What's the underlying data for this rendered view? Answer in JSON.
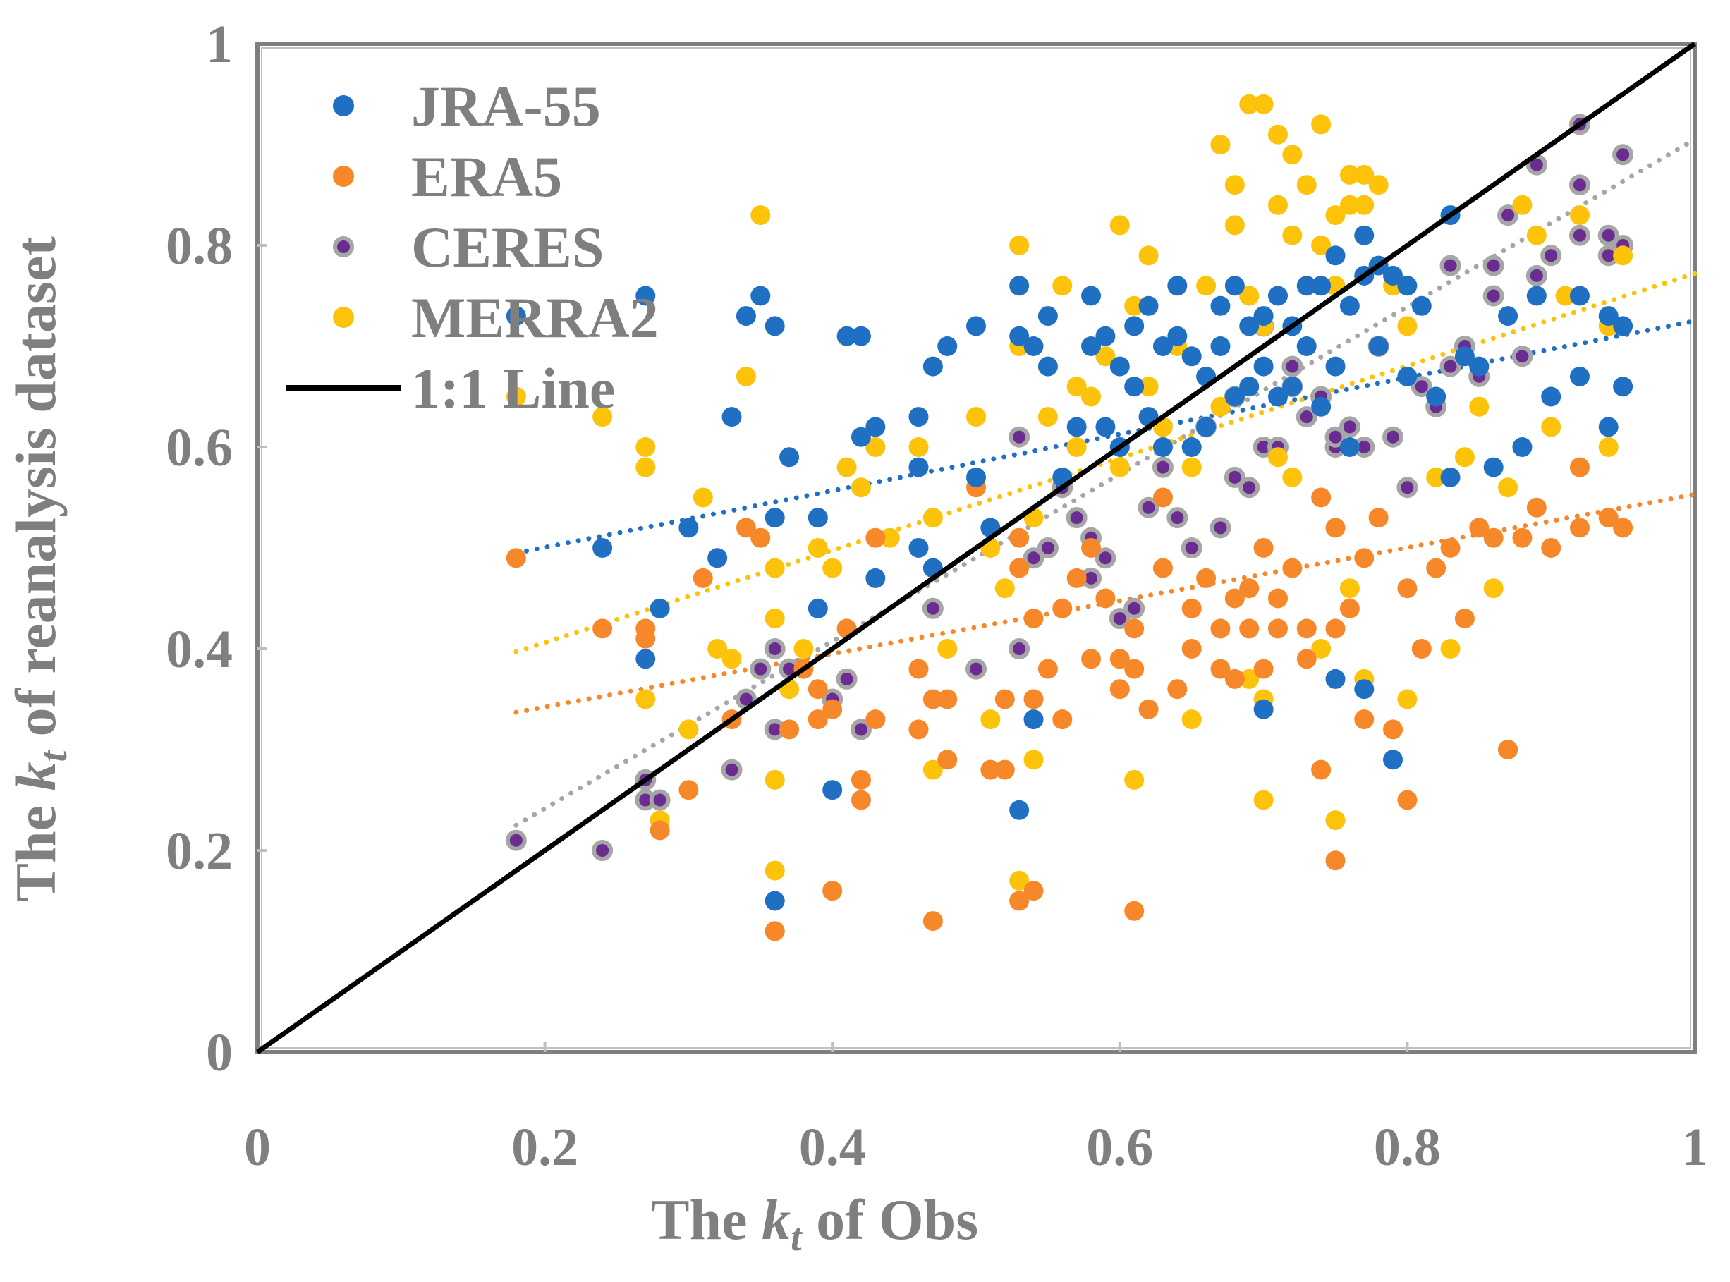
{
  "chart_data": {
    "type": "scatter",
    "title": "",
    "xlabel": {
      "prefix": "The ",
      "k": "k",
      "sub": "t",
      "suffix": " of Obs"
    },
    "ylabel": {
      "prefix": "The ",
      "k": "k",
      "sub": "t",
      "suffix": " of reanalysis dataset"
    },
    "xlim": [
      0,
      1
    ],
    "ylim": [
      0,
      1
    ],
    "x_ticks": [
      0,
      0.2,
      0.4,
      0.6,
      0.8,
      1
    ],
    "y_ticks": [
      0,
      0.2,
      0.4,
      0.6,
      0.8,
      1
    ],
    "x_tick_labels": [
      "0",
      "0.2",
      "0.4",
      "0.6",
      "0.8",
      "1"
    ],
    "y_tick_labels": [
      "0",
      "0.2",
      "0.4",
      "0.6",
      "0.8",
      "1"
    ],
    "legend_position": "top-left",
    "legend": [
      {
        "label": "JRA-55",
        "kind": "dot",
        "color": "#1f6fc3"
      },
      {
        "label": "ERA5",
        "kind": "dot",
        "color": "#f6882a"
      },
      {
        "label": "CERES",
        "kind": "ring",
        "color": "#a6a6a6",
        "inner": "#6b2c91"
      },
      {
        "label": "MERRA2",
        "kind": "dot",
        "color": "#fdc30a"
      },
      {
        "label": "1:1 Line",
        "kind": "line",
        "color": "#000000"
      }
    ],
    "one_to_one": [
      [
        0,
        0
      ],
      [
        1,
        1
      ]
    ],
    "series": [
      {
        "name": "JRA-55",
        "color": "#1f6fc3",
        "trend": {
          "from": [
            0.18,
            0.495
          ],
          "to": [
            1.0,
            0.725
          ]
        },
        "x": [
          0.18,
          0.24,
          0.27,
          0.27,
          0.28,
          0.3,
          0.32,
          0.33,
          0.34,
          0.35,
          0.36,
          0.36,
          0.37,
          0.39,
          0.39,
          0.4,
          0.41,
          0.42,
          0.42,
          0.43,
          0.43,
          0.46,
          0.46,
          0.46,
          0.47,
          0.47,
          0.48,
          0.5,
          0.5,
          0.51,
          0.53,
          0.53,
          0.54,
          0.55,
          0.55,
          0.56,
          0.57,
          0.58,
          0.58,
          0.59,
          0.59,
          0.6,
          0.6,
          0.61,
          0.61,
          0.62,
          0.62,
          0.63,
          0.63,
          0.64,
          0.64,
          0.65,
          0.65,
          0.66,
          0.66,
          0.67,
          0.67,
          0.68,
          0.68,
          0.69,
          0.69,
          0.7,
          0.7,
          0.71,
          0.71,
          0.72,
          0.72,
          0.73,
          0.73,
          0.74,
          0.74,
          0.75,
          0.75,
          0.76,
          0.76,
          0.77,
          0.77,
          0.78,
          0.78,
          0.79,
          0.8,
          0.8,
          0.81,
          0.82,
          0.83,
          0.83,
          0.84,
          0.85,
          0.86,
          0.87,
          0.88,
          0.89,
          0.9,
          0.92,
          0.92,
          0.94,
          0.94,
          0.95,
          0.95,
          0.7,
          0.77,
          0.75,
          0.79,
          0.53,
          0.54,
          0.36
        ],
        "y": [
          0.73,
          0.5,
          0.75,
          0.39,
          0.44,
          0.52,
          0.49,
          0.63,
          0.73,
          0.75,
          0.72,
          0.53,
          0.59,
          0.53,
          0.44,
          0.26,
          0.71,
          0.71,
          0.61,
          0.62,
          0.47,
          0.63,
          0.58,
          0.5,
          0.68,
          0.48,
          0.7,
          0.72,
          0.57,
          0.52,
          0.76,
          0.71,
          0.7,
          0.68,
          0.73,
          0.57,
          0.62,
          0.75,
          0.7,
          0.71,
          0.62,
          0.68,
          0.6,
          0.72,
          0.66,
          0.74,
          0.63,
          0.7,
          0.6,
          0.76,
          0.71,
          0.69,
          0.6,
          0.67,
          0.62,
          0.74,
          0.7,
          0.76,
          0.65,
          0.72,
          0.66,
          0.73,
          0.68,
          0.75,
          0.65,
          0.72,
          0.66,
          0.76,
          0.7,
          0.76,
          0.64,
          0.79,
          0.68,
          0.74,
          0.6,
          0.81,
          0.77,
          0.78,
          0.7,
          0.77,
          0.76,
          0.67,
          0.74,
          0.65,
          0.83,
          0.57,
          0.69,
          0.68,
          0.58,
          0.73,
          0.6,
          0.75,
          0.65,
          0.75,
          0.67,
          0.62,
          0.73,
          0.72,
          0.66,
          0.34,
          0.36,
          0.37,
          0.29,
          0.24,
          0.33,
          0.15
        ]
      },
      {
        "name": "ERA5",
        "color": "#f6882a",
        "trend": {
          "from": [
            0.18,
            0.337
          ],
          "to": [
            1.0,
            0.553
          ]
        },
        "x": [
          0.18,
          0.24,
          0.27,
          0.27,
          0.28,
          0.3,
          0.31,
          0.33,
          0.34,
          0.35,
          0.36,
          0.37,
          0.38,
          0.39,
          0.39,
          0.4,
          0.4,
          0.41,
          0.42,
          0.42,
          0.43,
          0.43,
          0.46,
          0.46,
          0.47,
          0.48,
          0.48,
          0.5,
          0.51,
          0.52,
          0.52,
          0.53,
          0.53,
          0.54,
          0.54,
          0.55,
          0.56,
          0.56,
          0.57,
          0.58,
          0.58,
          0.59,
          0.6,
          0.6,
          0.61,
          0.61,
          0.62,
          0.63,
          0.63,
          0.64,
          0.65,
          0.65,
          0.66,
          0.67,
          0.67,
          0.68,
          0.68,
          0.69,
          0.69,
          0.7,
          0.7,
          0.71,
          0.71,
          0.72,
          0.73,
          0.73,
          0.74,
          0.74,
          0.75,
          0.75,
          0.76,
          0.77,
          0.77,
          0.78,
          0.79,
          0.8,
          0.81,
          0.82,
          0.83,
          0.84,
          0.85,
          0.86,
          0.87,
          0.88,
          0.89,
          0.9,
          0.92,
          0.92,
          0.94,
          0.95,
          0.36,
          0.4,
          0.47,
          0.53,
          0.54,
          0.61,
          0.75,
          0.8,
          0.87
        ],
        "y": [
          0.49,
          0.42,
          0.42,
          0.41,
          0.22,
          0.26,
          0.47,
          0.33,
          0.52,
          0.51,
          0.12,
          0.32,
          0.38,
          0.36,
          0.33,
          0.16,
          0.34,
          0.42,
          0.27,
          0.25,
          0.33,
          0.51,
          0.38,
          0.32,
          0.35,
          0.29,
          0.35,
          0.56,
          0.28,
          0.35,
          0.28,
          0.51,
          0.48,
          0.35,
          0.43,
          0.38,
          0.44,
          0.33,
          0.47,
          0.39,
          0.5,
          0.45,
          0.36,
          0.39,
          0.42,
          0.38,
          0.34,
          0.48,
          0.55,
          0.36,
          0.44,
          0.4,
          0.47,
          0.42,
          0.38,
          0.45,
          0.37,
          0.42,
          0.46,
          0.38,
          0.5,
          0.42,
          0.45,
          0.48,
          0.42,
          0.39,
          0.55,
          0.28,
          0.42,
          0.52,
          0.44,
          0.49,
          0.33,
          0.53,
          0.32,
          0.46,
          0.4,
          0.48,
          0.5,
          0.43,
          0.52,
          0.51,
          0.3,
          0.51,
          0.54,
          0.5,
          0.58,
          0.52,
          0.53,
          0.52,
          0.12,
          0.16,
          0.13,
          0.15,
          0.16,
          0.14,
          0.19,
          0.25,
          0.3
        ]
      },
      {
        "name": "CERES",
        "color": "#a6a6a6",
        "inner": "#6b2c91",
        "trend": {
          "from": [
            0.18,
            0.225
          ],
          "to": [
            1.0,
            0.905
          ]
        },
        "x": [
          0.18,
          0.24,
          0.27,
          0.27,
          0.28,
          0.33,
          0.34,
          0.35,
          0.36,
          0.36,
          0.37,
          0.4,
          0.41,
          0.42,
          0.47,
          0.5,
          0.53,
          0.53,
          0.54,
          0.55,
          0.56,
          0.57,
          0.58,
          0.58,
          0.59,
          0.6,
          0.61,
          0.62,
          0.63,
          0.64,
          0.65,
          0.66,
          0.67,
          0.68,
          0.68,
          0.69,
          0.7,
          0.7,
          0.71,
          0.72,
          0.72,
          0.73,
          0.74,
          0.75,
          0.75,
          0.76,
          0.77,
          0.78,
          0.79,
          0.8,
          0.81,
          0.82,
          0.83,
          0.83,
          0.84,
          0.85,
          0.86,
          0.86,
          0.87,
          0.88,
          0.89,
          0.89,
          0.9,
          0.92,
          0.92,
          0.92,
          0.94,
          0.94,
          0.95,
          0.95
        ],
        "y": [
          0.21,
          0.2,
          0.27,
          0.25,
          0.25,
          0.28,
          0.35,
          0.38,
          0.32,
          0.4,
          0.38,
          0.35,
          0.37,
          0.32,
          0.44,
          0.38,
          0.4,
          0.61,
          0.49,
          0.5,
          0.56,
          0.53,
          0.51,
          0.47,
          0.49,
          0.43,
          0.44,
          0.54,
          0.58,
          0.53,
          0.5,
          0.62,
          0.52,
          0.57,
          0.65,
          0.56,
          0.6,
          0.72,
          0.6,
          0.66,
          0.68,
          0.63,
          0.65,
          0.6,
          0.61,
          0.62,
          0.6,
          0.7,
          0.61,
          0.56,
          0.66,
          0.64,
          0.78,
          0.68,
          0.7,
          0.67,
          0.78,
          0.75,
          0.83,
          0.69,
          0.88,
          0.77,
          0.79,
          0.92,
          0.86,
          0.81,
          0.81,
          0.79,
          0.89,
          0.8
        ]
      },
      {
        "name": "MERRA2",
        "color": "#fdc30a",
        "trend": {
          "from": [
            0.18,
            0.397
          ],
          "to": [
            1.0,
            0.772
          ]
        },
        "x": [
          0.18,
          0.24,
          0.27,
          0.27,
          0.27,
          0.28,
          0.3,
          0.31,
          0.32,
          0.33,
          0.34,
          0.35,
          0.36,
          0.36,
          0.36,
          0.37,
          0.38,
          0.39,
          0.4,
          0.41,
          0.42,
          0.43,
          0.44,
          0.46,
          0.47,
          0.47,
          0.48,
          0.5,
          0.51,
          0.51,
          0.52,
          0.53,
          0.53,
          0.54,
          0.55,
          0.56,
          0.57,
          0.57,
          0.58,
          0.59,
          0.6,
          0.6,
          0.61,
          0.62,
          0.62,
          0.63,
          0.64,
          0.65,
          0.65,
          0.66,
          0.67,
          0.67,
          0.68,
          0.68,
          0.69,
          0.69,
          0.7,
          0.7,
          0.71,
          0.71,
          0.72,
          0.72,
          0.73,
          0.74,
          0.74,
          0.75,
          0.75,
          0.76,
          0.76,
          0.77,
          0.77,
          0.78,
          0.79,
          0.8,
          0.8,
          0.82,
          0.83,
          0.84,
          0.85,
          0.86,
          0.87,
          0.88,
          0.89,
          0.9,
          0.91,
          0.92,
          0.94,
          0.94,
          0.95,
          0.69,
          0.7,
          0.71,
          0.72,
          0.74,
          0.76,
          0.77,
          0.36,
          0.53,
          0.54,
          0.61,
          0.7,
          0.75
        ],
        "y": [
          0.65,
          0.63,
          0.6,
          0.58,
          0.35,
          0.23,
          0.32,
          0.55,
          0.4,
          0.39,
          0.67,
          0.83,
          0.48,
          0.43,
          0.27,
          0.36,
          0.4,
          0.5,
          0.48,
          0.58,
          0.56,
          0.6,
          0.51,
          0.6,
          0.53,
          0.28,
          0.4,
          0.63,
          0.5,
          0.33,
          0.46,
          0.8,
          0.7,
          0.53,
          0.63,
          0.76,
          0.66,
          0.6,
          0.65,
          0.69,
          0.82,
          0.58,
          0.74,
          0.79,
          0.66,
          0.62,
          0.7,
          0.58,
          0.33,
          0.76,
          0.9,
          0.64,
          0.86,
          0.82,
          0.94,
          0.75,
          0.94,
          0.72,
          0.91,
          0.84,
          0.89,
          0.81,
          0.86,
          0.92,
          0.8,
          0.83,
          0.76,
          0.87,
          0.84,
          0.87,
          0.84,
          0.86,
          0.76,
          0.35,
          0.72,
          0.57,
          0.4,
          0.59,
          0.64,
          0.46,
          0.56,
          0.84,
          0.81,
          0.62,
          0.75,
          0.83,
          0.72,
          0.6,
          0.79,
          0.37,
          0.35,
          0.59,
          0.57,
          0.4,
          0.46,
          0.37,
          0.18,
          0.17,
          0.29,
          0.27,
          0.25,
          0.23
        ]
      }
    ]
  }
}
